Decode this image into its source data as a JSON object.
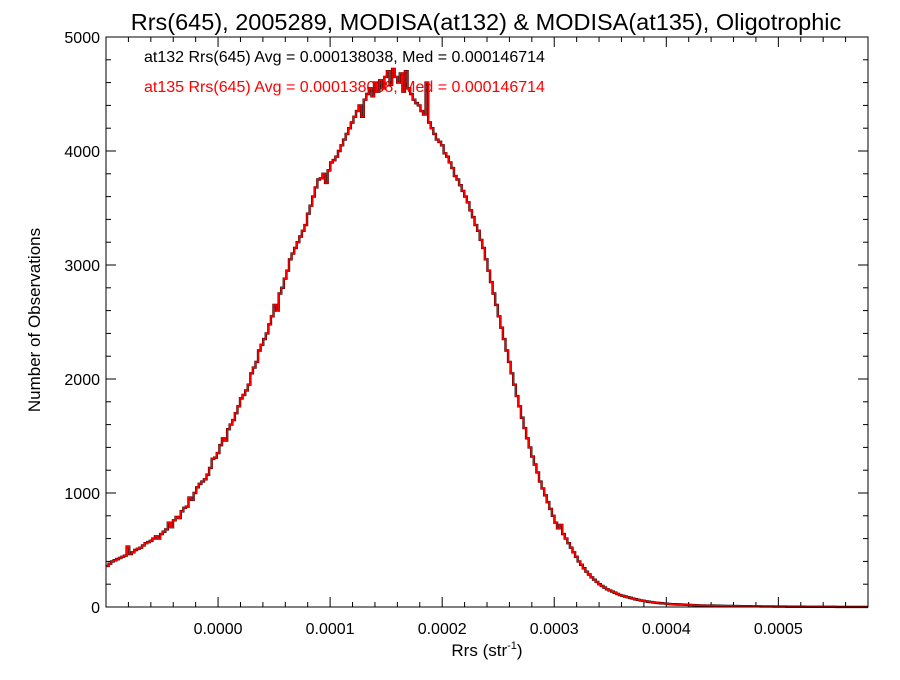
{
  "chart_data": {
    "type": "histogram-step",
    "title": "Rrs(645), 2005289, MODISA(at132) & MODISA(at135), Oligotrophic",
    "xlabel": "Rrs (str",
    "xlabel_superscript": "-1",
    "xlabel_suffix": ")",
    "ylabel": "Number of Observations",
    "xlim": [
      -0.0001,
      0.00058
    ],
    "ylim": [
      0,
      5000
    ],
    "x_ticks": [
      0.0,
      0.0001,
      0.0002,
      0.0003,
      0.0004,
      0.0005
    ],
    "x_tick_labels": [
      "0.0000",
      "0.0001",
      "0.0002",
      "0.0003",
      "0.0004",
      "0.0005"
    ],
    "y_ticks": [
      0,
      1000,
      2000,
      3000,
      4000,
      5000
    ],
    "y_tick_labels": [
      "0",
      "1000",
      "2000",
      "3000",
      "4000",
      "5000"
    ],
    "grid": false,
    "annotations": [
      {
        "text": "at132 Rrs(645) Avg = 0.000138038, Med = 0.000146714",
        "color": "#000000"
      },
      {
        "text": "at135 Rrs(645) Avg = 0.000138038, Med = 0.000146714",
        "color": "#ff0000"
      }
    ],
    "series": [
      {
        "color": "#000000",
        "stroke_width": 2.4
      },
      {
        "color": "#ff0000",
        "stroke_width": 1.6
      }
    ],
    "bin_width": 2.3e-06,
    "x": [
      -0.0001,
      -9.77e-05,
      -9.54e-05,
      -9.31e-05,
      -9.08e-05,
      -8.85e-05,
      -8.62e-05,
      -8.39e-05,
      -8.16e-05,
      -7.93e-05,
      -7.7e-05,
      -7.47e-05,
      -7.24e-05,
      -7.01e-05,
      -6.78e-05,
      -6.55e-05,
      -6.32e-05,
      -6.09e-05,
      -5.86e-05,
      -5.63e-05,
      -5.4e-05,
      -5.17e-05,
      -4.94e-05,
      -4.71e-05,
      -4.48e-05,
      -4.25e-05,
      -4.02e-05,
      -3.79e-05,
      -3.56e-05,
      -3.33e-05,
      -3.1e-05,
      -2.87e-05,
      -2.64e-05,
      -2.41e-05,
      -2.18e-05,
      -1.95e-05,
      -1.72e-05,
      -1.49e-05,
      -1.26e-05,
      -1.03e-05,
      -8e-06,
      -5.7e-06,
      -3.4e-06,
      -1.1e-06,
      1.2e-06,
      3.5e-06,
      5.8e-06,
      8.1e-06,
      1.04e-05,
      1.27e-05,
      1.5e-05,
      1.73e-05,
      1.96e-05,
      2.19e-05,
      2.42e-05,
      2.65e-05,
      2.88e-05,
      3.11e-05,
      3.34e-05,
      3.57e-05,
      3.8e-05,
      4.03e-05,
      4.26e-05,
      4.49e-05,
      4.72e-05,
      4.95e-05,
      5.18e-05,
      5.41e-05,
      5.64e-05,
      5.87e-05,
      6.1e-05,
      6.33e-05,
      6.56e-05,
      6.79e-05,
      7.02e-05,
      7.25e-05,
      7.48e-05,
      7.71e-05,
      7.94e-05,
      8.17e-05,
      8.4e-05,
      8.63e-05,
      8.86e-05,
      9.09e-05,
      9.32e-05,
      9.55e-05,
      9.78e-05,
      0.0001001,
      0.0001024,
      0.0001047,
      0.000107,
      0.0001093,
      0.0001116,
      0.0001139,
      0.0001162,
      0.0001185,
      0.0001208,
      0.0001231,
      0.0001254,
      0.0001277,
      0.00013,
      0.0001323,
      0.0001346,
      0.0001369,
      0.0001392,
      0.0001415,
      0.0001438,
      0.0001461,
      0.0001484,
      0.0001507,
      0.000153,
      0.0001553,
      0.0001576,
      0.0001599,
      0.0001622,
      0.0001645,
      0.0001668,
      0.0001691,
      0.0001714,
      0.0001737,
      0.000176,
      0.0001783,
      0.0001806,
      0.0001829,
      0.0001852,
      0.0001875,
      0.0001898,
      0.0001921,
      0.0001944,
      0.0001967,
      0.000199,
      0.0002013,
      0.0002036,
      0.0002059,
      0.0002082,
      0.0002105,
      0.0002128,
      0.0002151,
      0.0002174,
      0.0002197,
      0.000222,
      0.0002243,
      0.0002266,
      0.0002289,
      0.0002312,
      0.0002335,
      0.0002358,
      0.0002381,
      0.0002404,
      0.0002427,
      0.000245,
      0.0002473,
      0.0002496,
      0.0002519,
      0.0002542,
      0.0002565,
      0.0002588,
      0.0002611,
      0.0002634,
      0.0002657,
      0.000268,
      0.0002703,
      0.0002726,
      0.0002749,
      0.0002772,
      0.0002795,
      0.0002818,
      0.0002841,
      0.0002864,
      0.0002887,
      0.000291,
      0.0002933,
      0.0002956,
      0.0002979,
      0.0003002,
      0.0003025,
      0.0003048,
      0.0003071,
      0.0003094,
      0.0003117,
      0.000314,
      0.0003163,
      0.0003186,
      0.0003209,
      0.0003232,
      0.0003255,
      0.0003278,
      0.0003301,
      0.0003324,
      0.0003347,
      0.000337,
      0.0003393,
      0.0003416,
      0.0003439,
      0.0003462,
      0.0003485,
      0.0003508,
      0.0003531,
      0.0003554,
      0.0003577,
      0.00036,
      0.0003623,
      0.0003646,
      0.0003669,
      0.0003692,
      0.0003715,
      0.0003738,
      0.0003761,
      0.0003784,
      0.0003807,
      0.000383,
      0.0003853,
      0.0003876,
      0.0003899,
      0.0003922,
      0.0003945,
      0.0003968,
      0.0003991,
      0.0004014,
      0.0004037,
      0.000406,
      0.0004083,
      0.0004106,
      0.0004129,
      0.0004152,
      0.0004175,
      0.0004198,
      0.0004221,
      0.0004244,
      0.0004267,
      0.000429,
      0.0004313,
      0.0004336,
      0.0004359,
      0.0004382,
      0.0004405,
      0.0004428,
      0.0004451,
      0.0004474,
      0.0004497,
      0.000452,
      0.0004543,
      0.0004566,
      0.0004589,
      0.0004612,
      0.0004635,
      0.0004658,
      0.0004681,
      0.0004704,
      0.0004727,
      0.000475,
      0.0004773,
      0.0004796,
      0.0004819,
      0.0004842,
      0.0004865,
      0.0004888,
      0.0004911,
      0.0004934,
      0.0004957,
      0.000498,
      0.0005003,
      0.0005026,
      0.0005049,
      0.0005072,
      0.0005095,
      0.0005118,
      0.0005141,
      0.0005164,
      0.0005187,
      0.000521,
      0.0005233,
      0.0005256,
      0.0005279,
      0.0005302,
      0.0005325,
      0.0005348,
      0.0005371,
      0.0005394,
      0.0005417,
      0.000544,
      0.0005463,
      0.0005486,
      0.0005509,
      0.0005532,
      0.0005555,
      0.0005578,
      0.0005601,
      0.0005624,
      0.0005647,
      0.000567,
      0.0005693,
      0.0005716,
      0.0005739,
      0.0005762
    ],
    "counts": [
      360,
      380,
      400,
      410,
      420,
      430,
      440,
      450,
      530,
      465,
      480,
      500,
      510,
      520,
      540,
      560,
      570,
      580,
      600,
      620,
      600,
      640,
      660,
      680,
      740,
      700,
      760,
      790,
      780,
      840,
      870,
      880,
      960,
      940,
      1000,
      1050,
      1080,
      1100,
      1120,
      1160,
      1220,
      1300,
      1310,
      1350,
      1420,
      1480,
      1460,
      1560,
      1600,
      1640,
      1700,
      1760,
      1830,
      1860,
      1900,
      1950,
      2050,
      2100,
      2150,
      2250,
      2300,
      2350,
      2400,
      2480,
      2550,
      2650,
      2600,
      2750,
      2800,
      2880,
      2950,
      3050,
      3100,
      3150,
      3200,
      3250,
      3300,
      3350,
      3450,
      3520,
      3600,
      3680,
      3750,
      3760,
      3800,
      3720,
      3830,
      3900,
      3920,
      3950,
      4000,
      4050,
      4100,
      4150,
      4200,
      4250,
      4300,
      4350,
      4400,
      4300,
      4450,
      4500,
      4550,
      4480,
      4600,
      4520,
      4620,
      4550,
      4650,
      4700,
      4580,
      4720,
      4650,
      4600,
      4680,
      4520,
      4700,
      4550,
      4500,
      4450,
      4420,
      4400,
      4350,
      4320,
      4600,
      4250,
      4200,
      4150,
      4100,
      4080,
      4050,
      3980,
      3950,
      3900,
      3850,
      3780,
      3750,
      3700,
      3650,
      3600,
      3550,
      3480,
      3420,
      3350,
      3300,
      3220,
      3150,
      3050,
      2950,
      2850,
      2750,
      2650,
      2550,
      2450,
      2350,
      2250,
      2150,
      2050,
      1950,
      1850,
      1760,
      1660,
      1570,
      1480,
      1400,
      1320,
      1250,
      1180,
      1100,
      1040,
      980,
      920,
      860,
      800,
      740,
      690,
      720,
      640,
      600,
      560,
      520,
      480,
      440,
      400,
      370,
      340,
      310,
      285,
      260,
      240,
      220,
      200,
      185,
      170,
      155,
      145,
      135,
      125,
      115,
      105,
      98,
      92,
      86,
      80,
      74,
      68,
      63,
      58,
      54,
      50,
      46,
      43,
      40,
      37,
      35,
      33,
      31,
      29,
      27,
      25,
      24,
      23,
      22,
      21,
      20,
      19,
      18,
      17,
      16,
      15,
      14,
      14,
      13,
      13,
      12,
      12,
      11,
      11,
      10,
      10,
      9,
      9,
      9,
      8,
      8,
      8,
      7,
      7,
      7,
      7,
      6,
      6,
      6,
      6,
      5,
      5,
      5,
      5,
      5,
      4,
      4,
      4,
      4,
      4,
      3,
      3,
      3,
      3,
      3,
      3,
      3,
      2,
      2,
      2,
      2,
      2,
      2,
      2,
      2,
      2,
      2,
      2,
      2,
      1,
      1,
      1,
      1,
      1,
      1,
      1,
      1,
      1,
      1,
      1,
      1
    ]
  }
}
